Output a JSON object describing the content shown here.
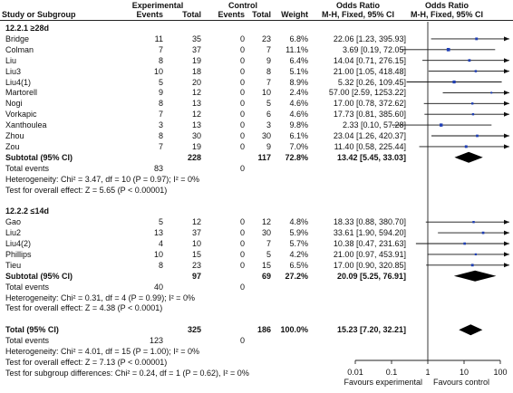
{
  "header": {
    "col_study": "Study or Subgroup",
    "grp_exp": "Experimental",
    "grp_ctl": "Control",
    "col_events": "Events",
    "col_total": "Total",
    "col_weight": "Weight",
    "col_or_title": "Odds Ratio",
    "col_or_method": "M-H, Fixed, 95% CI",
    "plot_title": "Odds Ratio",
    "plot_method": "M-H, Fixed, 95% CI"
  },
  "chart_data": {
    "type": "forest",
    "scale": "log",
    "xlim": [
      0.01,
      100
    ],
    "x_ticks": [
      "0.01",
      "0.1",
      "1",
      "10",
      "100"
    ],
    "xlabel_left": "Favours experimental",
    "xlabel_right": "Favours control",
    "subgroups": [
      {
        "title": "12.2.1 ≥28d",
        "studies": [
          {
            "name": "Bridge",
            "e_events": "11",
            "e_total": "35",
            "c_events": "0",
            "c_total": "23",
            "weight": "6.8%",
            "ci_text": "22.06 [1.23, 395.93]",
            "or": 22.06,
            "lo": 1.23,
            "hi": 395.93
          },
          {
            "name": "Colman",
            "e_events": "7",
            "e_total": "37",
            "c_events": "0",
            "c_total": "7",
            "weight": "11.1%",
            "ci_text": "3.69 [0.19, 72.05]",
            "or": 3.69,
            "lo": 0.19,
            "hi": 72.05
          },
          {
            "name": "Liu",
            "e_events": "8",
            "e_total": "19",
            "c_events": "0",
            "c_total": "9",
            "weight": "6.4%",
            "ci_text": "14.04 [0.71, 276.15]",
            "or": 14.04,
            "lo": 0.71,
            "hi": 276.15
          },
          {
            "name": "Liu3",
            "e_events": "10",
            "e_total": "18",
            "c_events": "0",
            "c_total": "8",
            "weight": "5.1%",
            "ci_text": "21.00 [1.05, 418.48]",
            "or": 21.0,
            "lo": 1.05,
            "hi": 418.48
          },
          {
            "name": "Liu4(1)",
            "e_events": "5",
            "e_total": "20",
            "c_events": "0",
            "c_total": "7",
            "weight": "8.9%",
            "ci_text": "5.32 [0.26, 109.45]",
            "or": 5.32,
            "lo": 0.26,
            "hi": 109.45
          },
          {
            "name": "Martorell",
            "e_events": "9",
            "e_total": "12",
            "c_events": "0",
            "c_total": "10",
            "weight": "2.4%",
            "ci_text": "57.00 [2.59, 1253.22]",
            "or": 57.0,
            "lo": 2.59,
            "hi": 1253.22
          },
          {
            "name": "Nogi",
            "e_events": "8",
            "e_total": "13",
            "c_events": "0",
            "c_total": "5",
            "weight": "4.6%",
            "ci_text": "17.00 [0.78, 372.62]",
            "or": 17.0,
            "lo": 0.78,
            "hi": 372.62
          },
          {
            "name": "Vorkapic",
            "e_events": "7",
            "e_total": "12",
            "c_events": "0",
            "c_total": "6",
            "weight": "4.6%",
            "ci_text": "17.73 [0.81, 385.60]",
            "or": 17.73,
            "lo": 0.81,
            "hi": 385.6
          },
          {
            "name": "Xanthoulea",
            "e_events": "3",
            "e_total": "13",
            "c_events": "0",
            "c_total": "3",
            "weight": "9.8%",
            "ci_text": "2.33 [0.10, 57.28]",
            "or": 2.33,
            "lo": 0.1,
            "hi": 57.28
          },
          {
            "name": "Zhou",
            "e_events": "8",
            "e_total": "30",
            "c_events": "0",
            "c_total": "30",
            "weight": "6.1%",
            "ci_text": "23.04 [1.26, 420.37]",
            "or": 23.04,
            "lo": 1.26,
            "hi": 420.37
          },
          {
            "name": "Zou",
            "e_events": "7",
            "e_total": "19",
            "c_events": "0",
            "c_total": "9",
            "weight": "7.0%",
            "ci_text": "11.40 [0.58, 225.44]",
            "or": 11.4,
            "lo": 0.58,
            "hi": 225.44
          }
        ],
        "subtotal": {
          "label": "Subtotal (95% CI)",
          "e_total": "228",
          "c_total": "117",
          "weight": "72.8%",
          "ci_text": "13.42 [5.45, 33.03]",
          "or": 13.42,
          "lo": 5.45,
          "hi": 33.03
        },
        "total_events": {
          "label": "Total events",
          "e": "83",
          "c": "0"
        },
        "heterogeneity": "Heterogeneity: Chi² = 3.47, df = 10 (P = 0.97); I² = 0%",
        "overall_effect": "Test for overall effect: Z = 5.65 (P < 0.00001)"
      },
      {
        "title": "12.2.2 ≤14d",
        "studies": [
          {
            "name": "Gao",
            "e_events": "5",
            "e_total": "12",
            "c_events": "0",
            "c_total": "12",
            "weight": "4.8%",
            "ci_text": "18.33 [0.88, 380.70]",
            "or": 18.33,
            "lo": 0.88,
            "hi": 380.7
          },
          {
            "name": "Liu2",
            "e_events": "13",
            "e_total": "37",
            "c_events": "0",
            "c_total": "30",
            "weight": "5.9%",
            "ci_text": "33.61 [1.90, 594.20]",
            "or": 33.61,
            "lo": 1.9,
            "hi": 594.2
          },
          {
            "name": "Liu4(2)",
            "e_events": "4",
            "e_total": "10",
            "c_events": "0",
            "c_total": "7",
            "weight": "5.7%",
            "ci_text": "10.38 [0.47, 231.63]",
            "or": 10.38,
            "lo": 0.47,
            "hi": 231.63
          },
          {
            "name": "Phillips",
            "e_events": "10",
            "e_total": "15",
            "c_events": "0",
            "c_total": "5",
            "weight": "4.2%",
            "ci_text": "21.00 [0.97, 453.91]",
            "or": 21.0,
            "lo": 0.97,
            "hi": 453.91
          },
          {
            "name": "Tieu",
            "e_events": "8",
            "e_total": "23",
            "c_events": "0",
            "c_total": "15",
            "weight": "6.5%",
            "ci_text": "17.00 [0.90, 320.85]",
            "or": 17.0,
            "lo": 0.9,
            "hi": 320.85
          }
        ],
        "subtotal": {
          "label": "Subtotal (95% CI)",
          "e_total": "97",
          "c_total": "69",
          "weight": "27.2%",
          "ci_text": "20.09 [5.25, 76.91]",
          "or": 20.09,
          "lo": 5.25,
          "hi": 76.91
        },
        "total_events": {
          "label": "Total events",
          "e": "40",
          "c": "0"
        },
        "heterogeneity": "Heterogeneity: Chi² = 0.31, df = 4 (P = 0.99); I² = 0%",
        "overall_effect": "Test for overall effect: Z = 4.38 (P < 0.0001)"
      }
    ],
    "total": {
      "label": "Total (95% CI)",
      "e_total": "325",
      "c_total": "186",
      "weight": "100.0%",
      "ci_text": "15.23 [7.20, 32.21]",
      "or": 15.23,
      "lo": 7.2,
      "hi": 32.21
    },
    "total_events": {
      "label": "Total events",
      "e": "123",
      "c": "0"
    },
    "heterogeneity": "Heterogeneity: Chi² = 4.01, df = 15 (P = 1.00); I² = 0%",
    "overall_effect": "Test for overall effect: Z = 7.13 (P < 0.00001)",
    "subgroup_diff": "Test for subgroup differences: Chi² = 0.24, df = 1 (P = 0.62), I² = 0%"
  }
}
